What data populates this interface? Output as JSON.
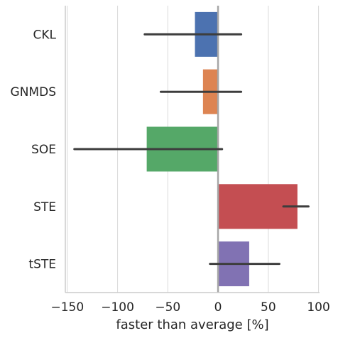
{
  "chart_data": {
    "type": "bar",
    "orientation": "horizontal",
    "categories": [
      "CKL",
      "GNMDS",
      "SOE",
      "STE",
      "tSTE"
    ],
    "values": [
      -23,
      -15,
      -71,
      79,
      31
    ],
    "error_bars": [
      [
        -73,
        23
      ],
      [
        -57,
        23
      ],
      [
        -143,
        4
      ],
      [
        65,
        90
      ],
      [
        -8,
        61
      ]
    ],
    "colors": [
      "#4c72b0",
      "#dd8452",
      "#55a868",
      "#c44e52",
      "#8172b3"
    ],
    "xlabel": "faster than average [%]",
    "ylabel": "",
    "xlim": [
      -152,
      101
    ],
    "xticks": [
      -150,
      -100,
      -50,
      0,
      50,
      100
    ],
    "xtick_labels": [
      "−150",
      "−100",
      "−50",
      "0",
      "50",
      "100"
    ],
    "grid": "vertical",
    "zero_line": true,
    "title": ""
  }
}
